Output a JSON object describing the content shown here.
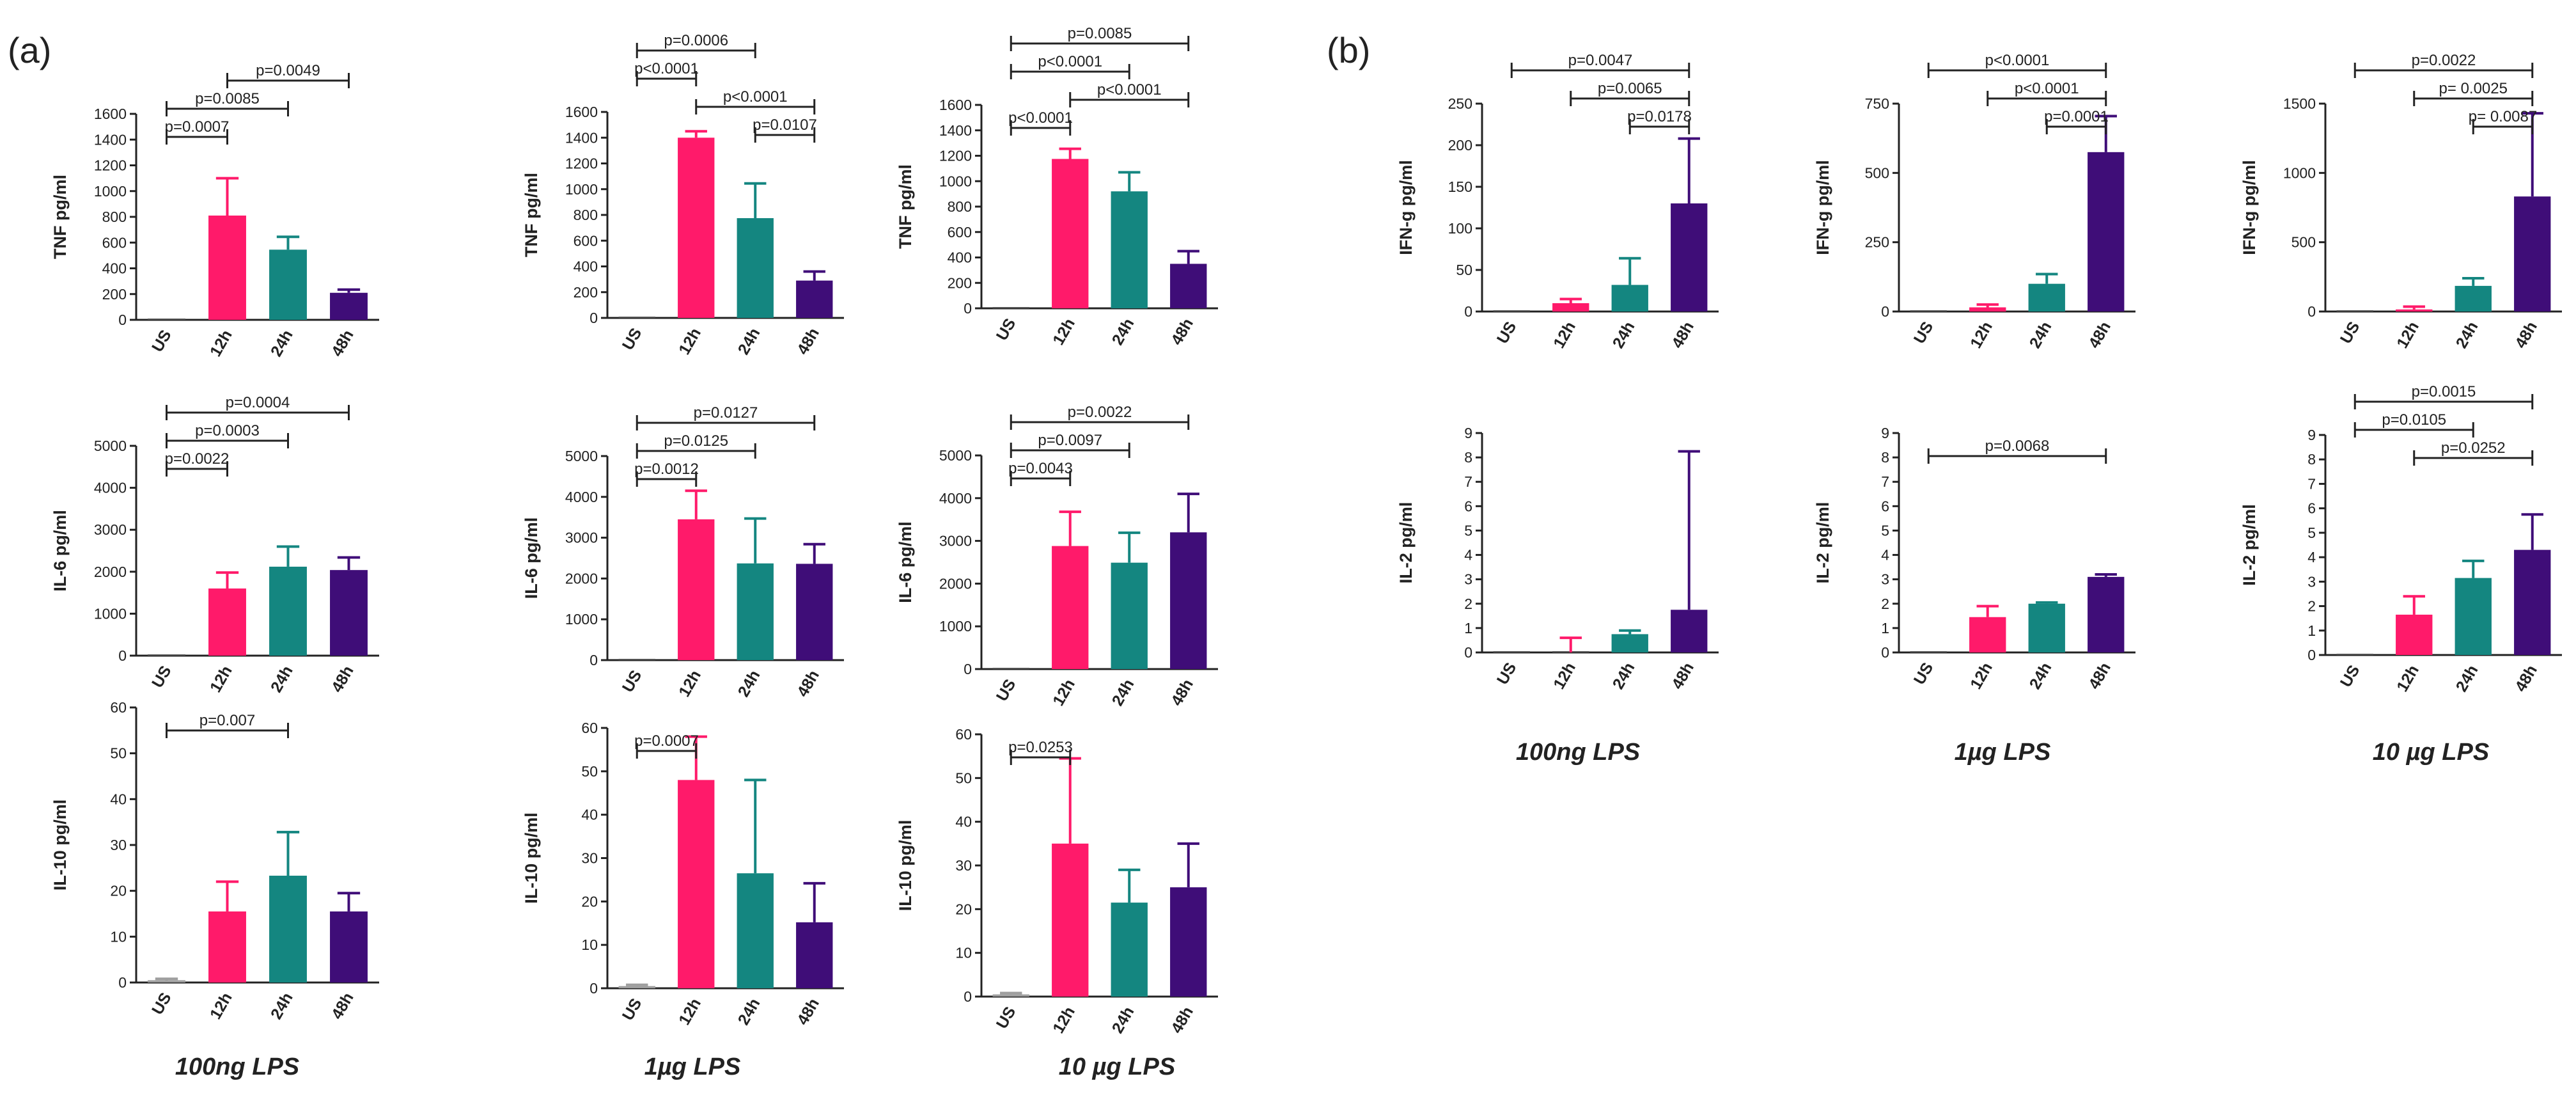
{
  "panel_labels": {
    "a": "(a)",
    "b": "(b)"
  },
  "colors": {
    "US": "#9e9e9e",
    "12h": "#ff1a6a",
    "24h": "#148680",
    "48h": "#3f0d78"
  },
  "column_captions": {
    "a": [
      "100ng LPS",
      "1µg LPS",
      "10 µg LPS"
    ],
    "b": [
      "100ng LPS",
      "1µg LPS",
      "10 µg LPS"
    ]
  },
  "chart_data": [
    {
      "type": "bar",
      "panel": "a",
      "title": "TNF 100ng LPS",
      "ylabel": "TNF pg/ml",
      "categories": [
        "US",
        "12h",
        "24h",
        "48h"
      ],
      "values": [
        0,
        810,
        545,
        210
      ],
      "errors": [
        0,
        290,
        100,
        25
      ],
      "ylim": [
        0,
        1600
      ],
      "yticks": [
        0,
        200,
        400,
        600,
        800,
        1000,
        1200,
        1400,
        1600
      ],
      "comparisons": [
        {
          "from": "US",
          "to": "12h",
          "label": "p=0.0007"
        },
        {
          "from": "US",
          "to": "24h",
          "label": "p=0.0085"
        },
        {
          "from": "12h",
          "to": "48h",
          "label": "p=0.0049"
        }
      ]
    },
    {
      "type": "bar",
      "panel": "a",
      "title": "TNF 1µg LPS",
      "ylabel": "TNF pg/ml",
      "categories": [
        "US",
        "12h",
        "24h",
        "48h"
      ],
      "values": [
        0,
        1400,
        775,
        290
      ],
      "errors": [
        0,
        50,
        270,
        70
      ],
      "ylim": [
        0,
        1600
      ],
      "yticks": [
        0,
        200,
        400,
        600,
        800,
        1000,
        1200,
        1400,
        1600
      ],
      "comparisons": [
        {
          "from": "24h",
          "to": "48h",
          "label": "p=0.0107"
        },
        {
          "from": "12h",
          "to": "48h",
          "label": "p<0.0001"
        },
        {
          "from": "US",
          "to": "12h",
          "label": "p<0.0001"
        },
        {
          "from": "US",
          "to": "24h",
          "label": "p=0.0006"
        }
      ]
    },
    {
      "type": "bar",
      "panel": "a",
      "title": "TNF 10µg LPS",
      "ylabel": "TNF pg/ml",
      "categories": [
        "US",
        "12h",
        "24h",
        "48h"
      ],
      "values": [
        0,
        1175,
        920,
        350
      ],
      "errors": [
        0,
        80,
        150,
        100
      ],
      "ylim": [
        0,
        1600
      ],
      "yticks": [
        0,
        200,
        400,
        600,
        800,
        1000,
        1200,
        1400,
        1600
      ],
      "comparisons": [
        {
          "from": "US",
          "to": "12h",
          "label": "p<0.0001"
        },
        {
          "from": "12h",
          "to": "48h",
          "label": "p<0.0001"
        },
        {
          "from": "US",
          "to": "24h",
          "label": "p<0.0001"
        },
        {
          "from": "US",
          "to": "48h",
          "label": "p=0.0085"
        }
      ]
    },
    {
      "type": "bar",
      "panel": "a",
      "title": "IL-6 100ng LPS",
      "ylabel": "IL-6 pg/ml",
      "categories": [
        "US",
        "12h",
        "24h",
        "48h"
      ],
      "values": [
        0,
        1600,
        2120,
        2040
      ],
      "errors": [
        0,
        380,
        480,
        300
      ],
      "ylim": [
        0,
        5000
      ],
      "yticks": [
        0,
        1000,
        2000,
        3000,
        4000,
        5000
      ],
      "comparisons": [
        {
          "from": "US",
          "to": "12h",
          "label": "p=0.0022"
        },
        {
          "from": "US",
          "to": "24h",
          "label": "p=0.0003"
        },
        {
          "from": "US",
          "to": "48h",
          "label": "p=0.0004"
        }
      ]
    },
    {
      "type": "bar",
      "panel": "a",
      "title": "IL-6 1µg LPS",
      "ylabel": "IL-6 pg/ml",
      "categories": [
        "US",
        "12h",
        "24h",
        "48h"
      ],
      "values": [
        0,
        3450,
        2370,
        2360
      ],
      "errors": [
        0,
        700,
        1100,
        480
      ],
      "ylim": [
        0,
        5000
      ],
      "yticks": [
        0,
        1000,
        2000,
        3000,
        4000,
        5000
      ],
      "comparisons": [
        {
          "from": "US",
          "to": "12h",
          "label": "p=0.0012"
        },
        {
          "from": "US",
          "to": "24h",
          "label": "p=0.0125"
        },
        {
          "from": "US",
          "to": "48h",
          "label": "p=0.0127"
        }
      ]
    },
    {
      "type": "bar",
      "panel": "a",
      "title": "IL-6 10µg LPS",
      "ylabel": "IL-6 pg/ml",
      "categories": [
        "US",
        "12h",
        "24h",
        "48h"
      ],
      "values": [
        0,
        2880,
        2490,
        3200
      ],
      "errors": [
        0,
        800,
        700,
        900
      ],
      "ylim": [
        0,
        5000
      ],
      "yticks": [
        0,
        1000,
        2000,
        3000,
        4000,
        5000
      ],
      "comparisons": [
        {
          "from": "US",
          "to": "12h",
          "label": "p=0.0043"
        },
        {
          "from": "US",
          "to": "24h",
          "label": "p=0.0097"
        },
        {
          "from": "US",
          "to": "48h",
          "label": "p=0.0022"
        }
      ]
    },
    {
      "type": "bar",
      "panel": "a",
      "title": "IL-10 100ng LPS",
      "ylabel": "IL-10 pg/ml",
      "categories": [
        "US",
        "12h",
        "24h",
        "48h"
      ],
      "values": [
        0.5,
        15.5,
        23.3,
        15.5
      ],
      "errors": [
        0.3,
        6.5,
        9.5,
        4
      ],
      "ylim": [
        0,
        60
      ],
      "yticks": [
        0,
        10,
        20,
        30,
        40,
        50,
        60
      ],
      "comparisons": [
        {
          "from": "US",
          "to": "24h",
          "label": "p=0.007"
        }
      ]
    },
    {
      "type": "bar",
      "panel": "a",
      "title": "IL-10 1µg LPS",
      "ylabel": "IL-10  pg/ml",
      "categories": [
        "US",
        "12h",
        "24h",
        "48h"
      ],
      "values": [
        0.5,
        48,
        26.5,
        15.2
      ],
      "errors": [
        0.3,
        10,
        21.5,
        9
      ],
      "ylim": [
        0,
        60
      ],
      "yticks": [
        0,
        10,
        20,
        30,
        40,
        50,
        60
      ],
      "comparisons": [
        {
          "from": "US",
          "to": "12h",
          "label": "p=0.0007"
        }
      ]
    },
    {
      "type": "bar",
      "panel": "a",
      "title": "IL-10 10µg LPS",
      "ylabel": "IL-10  pg/ml",
      "categories": [
        "US",
        "12h",
        "24h",
        "48h"
      ],
      "values": [
        0.5,
        35,
        21.5,
        25
      ],
      "errors": [
        0.3,
        19.5,
        7.5,
        10
      ],
      "ylim": [
        0,
        60
      ],
      "yticks": [
        0,
        10,
        20,
        30,
        40,
        50,
        60
      ],
      "comparisons": [
        {
          "from": "US",
          "to": "12h",
          "label": "p=0.0253"
        }
      ]
    },
    {
      "type": "bar",
      "panel": "b",
      "title": "IFN-g 100ng LPS",
      "ylabel": "IFN-g pg/ml",
      "categories": [
        "US",
        "12h",
        "24h",
        "48h"
      ],
      "values": [
        0,
        10,
        32,
        130
      ],
      "errors": [
        0,
        5,
        32,
        78
      ],
      "ylim": [
        0,
        250
      ],
      "yticks": [
        0,
        50,
        100,
        150,
        200,
        250
      ],
      "comparisons": [
        {
          "from": "24h",
          "to": "48h",
          "label": "p=0.0178"
        },
        {
          "from": "12h",
          "to": "48h",
          "label": "p=0.0065"
        },
        {
          "from": "US",
          "to": "48h",
          "label": "p=0.0047"
        }
      ]
    },
    {
      "type": "bar",
      "panel": "b",
      "title": "IFN-g 1µg LPS",
      "ylabel": "IFN-g  pg/ml",
      "categories": [
        "US",
        "12h",
        "24h",
        "48h"
      ],
      "values": [
        0,
        15,
        100,
        575
      ],
      "errors": [
        0,
        10,
        35,
        130
      ],
      "ylim": [
        0,
        750
      ],
      "yticks": [
        0,
        250,
        500,
        750
      ],
      "comparisons": [
        {
          "from": "24h",
          "to": "48h",
          "label": "p=0.0001"
        },
        {
          "from": "12h",
          "to": "48h",
          "label": "p<0.0001"
        },
        {
          "from": "US",
          "to": "48h",
          "label": "p<0.0001"
        }
      ]
    },
    {
      "type": "bar",
      "panel": "b",
      "title": "IFN-g 10µg LPS",
      "ylabel": "IFN-g  pg/ml",
      "categories": [
        "US",
        "12h",
        "24h",
        "48h"
      ],
      "values": [
        0,
        15,
        185,
        830
      ],
      "errors": [
        0,
        20,
        55,
        600
      ],
      "ylim": [
        0,
        1500
      ],
      "yticks": [
        0,
        500,
        1000,
        1500
      ],
      "comparisons": [
        {
          "from": "24h",
          "to": "48h",
          "label": "p= 0.0087"
        },
        {
          "from": "12h",
          "to": "48h",
          "label": "p= 0.0025"
        },
        {
          "from": "US",
          "to": "48h",
          "label": "p=0.0022"
        }
      ]
    },
    {
      "type": "bar",
      "panel": "b",
      "title": "IL-2 100ng LPS",
      "ylabel": "IL-2 pg/ml",
      "categories": [
        "US",
        "12h",
        "24h",
        "48h"
      ],
      "values": [
        0,
        0,
        0.75,
        1.75
      ],
      "errors": [
        0,
        0.6,
        0.15,
        6.5
      ],
      "ylim": [
        0,
        9
      ],
      "yticks": [
        0,
        1,
        2,
        3,
        4,
        5,
        6,
        7,
        8,
        9
      ],
      "comparisons": []
    },
    {
      "type": "bar",
      "panel": "b",
      "title": "IL-2 1µg LPS",
      "ylabel": "IL-2  pg/ml",
      "categories": [
        "US",
        "12h",
        "24h",
        "48h"
      ],
      "values": [
        0,
        1.45,
        2.0,
        3.1
      ],
      "errors": [
        0,
        0.45,
        0.05,
        0.1
      ],
      "ylim": [
        0,
        9
      ],
      "yticks": [
        0,
        1,
        2,
        3,
        4,
        5,
        6,
        7,
        8,
        9
      ],
      "comparisons": [
        {
          "from": "US",
          "to": "48h",
          "label": "p=0.0068"
        }
      ]
    },
    {
      "type": "bar",
      "panel": "b",
      "title": "IL-2 10µg LPS",
      "ylabel": "IL-2 pg/ml",
      "categories": [
        "US",
        "12h",
        "24h",
        "48h"
      ],
      "values": [
        0,
        1.65,
        3.15,
        4.3
      ],
      "errors": [
        0,
        0.75,
        0.7,
        1.45
      ],
      "ylim": [
        0,
        9
      ],
      "yticks": [
        0,
        1,
        2,
        3,
        4,
        5,
        6,
        7,
        8,
        9
      ],
      "comparisons": [
        {
          "from": "12h",
          "to": "48h",
          "label": "p=0.0252"
        },
        {
          "from": "US",
          "to": "24h",
          "label": "p=0.0105"
        },
        {
          "from": "US",
          "to": "48h",
          "label": "p=0.0015"
        }
      ]
    }
  ]
}
